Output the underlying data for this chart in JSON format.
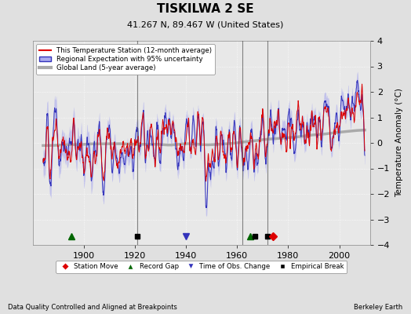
{
  "title": "TISKILWA 2 SE",
  "subtitle": "41.267 N, 89.467 W (United States)",
  "ylabel": "Temperature Anomaly (°C)",
  "xlabel_left": "Data Quality Controlled and Aligned at Breakpoints",
  "xlabel_right": "Berkeley Earth",
  "ylim": [
    -4,
    4
  ],
  "xlim": [
    1880,
    2012
  ],
  "xticks": [
    1900,
    1920,
    1940,
    1960,
    1980,
    2000
  ],
  "yticks": [
    -4,
    -3,
    -2,
    -1,
    0,
    1,
    2,
    3,
    4
  ],
  "bg_color": "#e0e0e0",
  "plot_bg_color": "#e8e8e8",
  "legend_line_items": [
    {
      "label": "This Temperature Station (12-month average)",
      "color": "#ff0000",
      "lw": 1.5
    },
    {
      "label": "Regional Expectation with 95% uncertainty",
      "color": "#4444dd",
      "lw": 1.5
    },
    {
      "label": "Global Land (5-year average)",
      "color": "#aaaaaa",
      "lw": 3
    }
  ],
  "vertical_lines": [
    {
      "x": 1921,
      "color": "#555555"
    },
    {
      "x": 1962,
      "color": "#555555"
    },
    {
      "x": 1972,
      "color": "#555555"
    }
  ],
  "station_moves": [
    1974
  ],
  "record_gaps": [
    1895,
    1965
  ],
  "obs_changes": [
    1940
  ],
  "empirical_breaks": [
    1921,
    1967,
    1972
  ],
  "seed": 123
}
